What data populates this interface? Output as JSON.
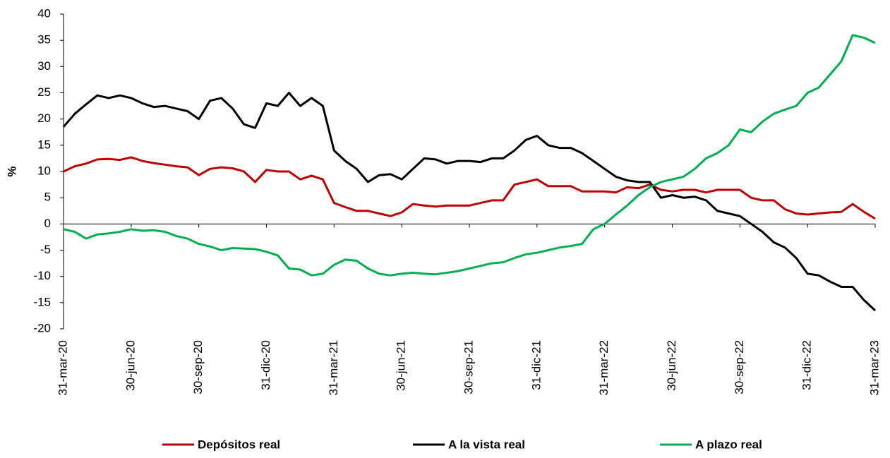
{
  "chart_data": {
    "type": "line",
    "ylabel": "%",
    "categories": [
      "31-mar-20",
      null,
      null,
      null,
      null,
      null,
      "30-jun-20",
      null,
      null,
      null,
      null,
      null,
      "30-sep-20",
      null,
      null,
      null,
      null,
      null,
      "31-dic-20",
      null,
      null,
      null,
      null,
      null,
      "31-mar-21",
      null,
      null,
      null,
      null,
      null,
      "30-jun-21",
      null,
      null,
      null,
      null,
      null,
      "30-sep-21",
      null,
      null,
      null,
      null,
      null,
      "31-dic-21",
      null,
      null,
      null,
      null,
      null,
      "31-mar-22",
      null,
      null,
      null,
      null,
      null,
      "30-jun-22",
      null,
      null,
      null,
      null,
      null,
      "30-sep-22",
      null,
      null,
      null,
      null,
      null,
      "31-dic-22",
      null,
      null,
      null,
      null,
      null,
      "31-mar-23"
    ],
    "series": [
      {
        "name": "Depósitos real",
        "color": "#c00000",
        "values": [
          10,
          11,
          11.5,
          12.3,
          12.4,
          12.2,
          12.7,
          12,
          11.6,
          11.3,
          11,
          10.8,
          9.3,
          10.5,
          10.8,
          10.6,
          10,
          8,
          10.3,
          10,
          10,
          8.5,
          9.2,
          8.5,
          4,
          3.2,
          2.5,
          2.5,
          2,
          1.5,
          2.2,
          3.8,
          3.5,
          3.3,
          3.5,
          3.5,
          3.5,
          4,
          4.5,
          4.5,
          7.5,
          8,
          8.5,
          7.2,
          7.2,
          7.2,
          6.2,
          6.2,
          6.2,
          6,
          7,
          6.8,
          7.5,
          6.5,
          6.2,
          6.5,
          6.5,
          6,
          6.5,
          6.5,
          6.5,
          5,
          4.5,
          4.5,
          2.8,
          2,
          1.8,
          2,
          2.2,
          2.3,
          3.8,
          2.3,
          1
        ]
      },
      {
        "name": "A la vista real",
        "color": "#000000",
        "values": [
          18.5,
          21,
          22.8,
          24.5,
          24,
          24.5,
          24,
          23,
          22.3,
          22.5,
          22,
          21.5,
          20,
          23.5,
          24,
          22,
          19,
          18.3,
          23,
          22.5,
          25,
          22.5,
          24,
          22.5,
          14,
          12,
          10.5,
          8,
          9.3,
          9.5,
          8.5,
          10.5,
          12.5,
          12.3,
          11.5,
          12,
          12,
          11.8,
          12.5,
          12.5,
          14,
          16,
          16.8,
          15,
          14.5,
          14.5,
          13.5,
          12,
          10.5,
          9,
          8.3,
          8,
          8,
          5,
          5.5,
          5,
          5.2,
          4.5,
          2.5,
          2,
          1.5,
          0,
          -1.5,
          -3.5,
          -4.5,
          -6.5,
          -9.5,
          -9.8,
          -11,
          -12,
          -12,
          -14.5,
          -16.5
        ]
      },
      {
        "name": "A plazo real",
        "color": "#00b050",
        "values": [
          -1,
          -1.5,
          -2.8,
          -2,
          -1.8,
          -1.5,
          -1,
          -1.3,
          -1.2,
          -1.5,
          -2.3,
          -2.8,
          -3.8,
          -4.3,
          -5,
          -4.6,
          -4.7,
          -4.8,
          -5.3,
          -6,
          -8.5,
          -8.7,
          -9.8,
          -9.5,
          -7.8,
          -6.8,
          -7,
          -8.5,
          -9.5,
          -9.8,
          -9.5,
          -9.3,
          -9.5,
          -9.6,
          -9.3,
          -9,
          -8.5,
          -8,
          -7.5,
          -7.3,
          -6.5,
          -5.8,
          -5.5,
          -5,
          -4.5,
          -4.2,
          -3.8,
          -1,
          0,
          1.8,
          3.5,
          5.5,
          7,
          8,
          8.5,
          9,
          10.5,
          12.5,
          13.5,
          15,
          18,
          17.5,
          19.5,
          21,
          21.8,
          22.5,
          25,
          26,
          28.5,
          31,
          36,
          35.5,
          34.5
        ]
      }
    ],
    "ylim": [
      -20,
      40
    ],
    "yticks": [
      -20,
      -15,
      -10,
      -5,
      0,
      5,
      10,
      15,
      20,
      25,
      30,
      35,
      40
    ]
  }
}
